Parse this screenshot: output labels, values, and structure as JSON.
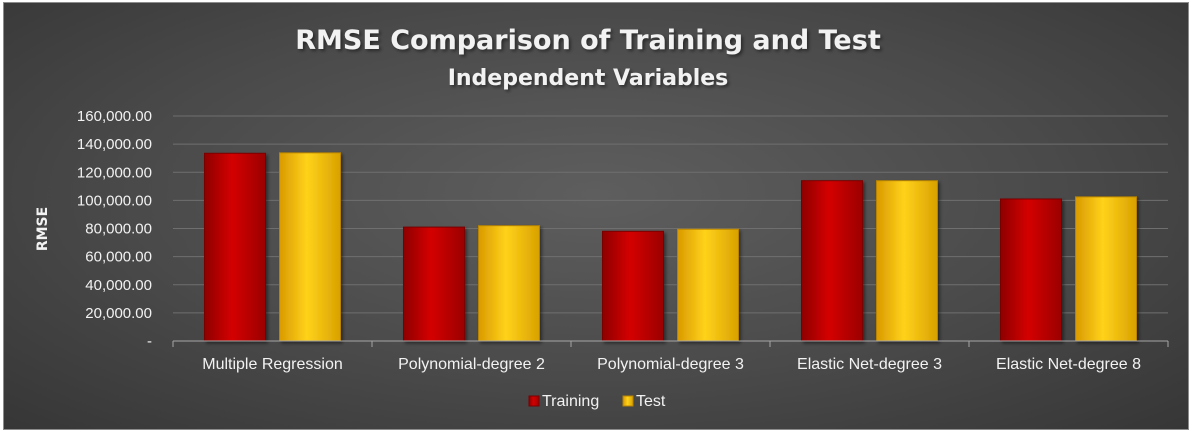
{
  "chart_data": {
    "type": "bar",
    "title": "RMSE Comparison of Training and Test",
    "subtitle": "Independent Variables",
    "ylabel": "RMSE",
    "xlabel": "",
    "categories": [
      "Multiple Regression",
      "Polynomial-degree 2",
      "Polynomial-degree 3",
      "Elastic Net-degree 3",
      "Elastic Net-degree 8"
    ],
    "series": [
      {
        "name": "Training",
        "values": [
          133500,
          81000,
          78000,
          114000,
          101000
        ],
        "color": "#c00000"
      },
      {
        "name": "Test",
        "values": [
          133800,
          82000,
          79500,
          114000,
          102500
        ],
        "color": "#ffc000"
      }
    ],
    "ylim": [
      0,
      160000
    ],
    "yticks": [
      0,
      20000,
      40000,
      60000,
      80000,
      100000,
      120000,
      140000,
      160000
    ],
    "ytick_labels": [
      "-",
      "20,000.00",
      "40,000.00",
      "60,000.00",
      "80,000.00",
      "100,000.00",
      "120,000.00",
      "140,000.00",
      "160,000.00"
    ],
    "grid": true,
    "legend_position": "bottom"
  }
}
